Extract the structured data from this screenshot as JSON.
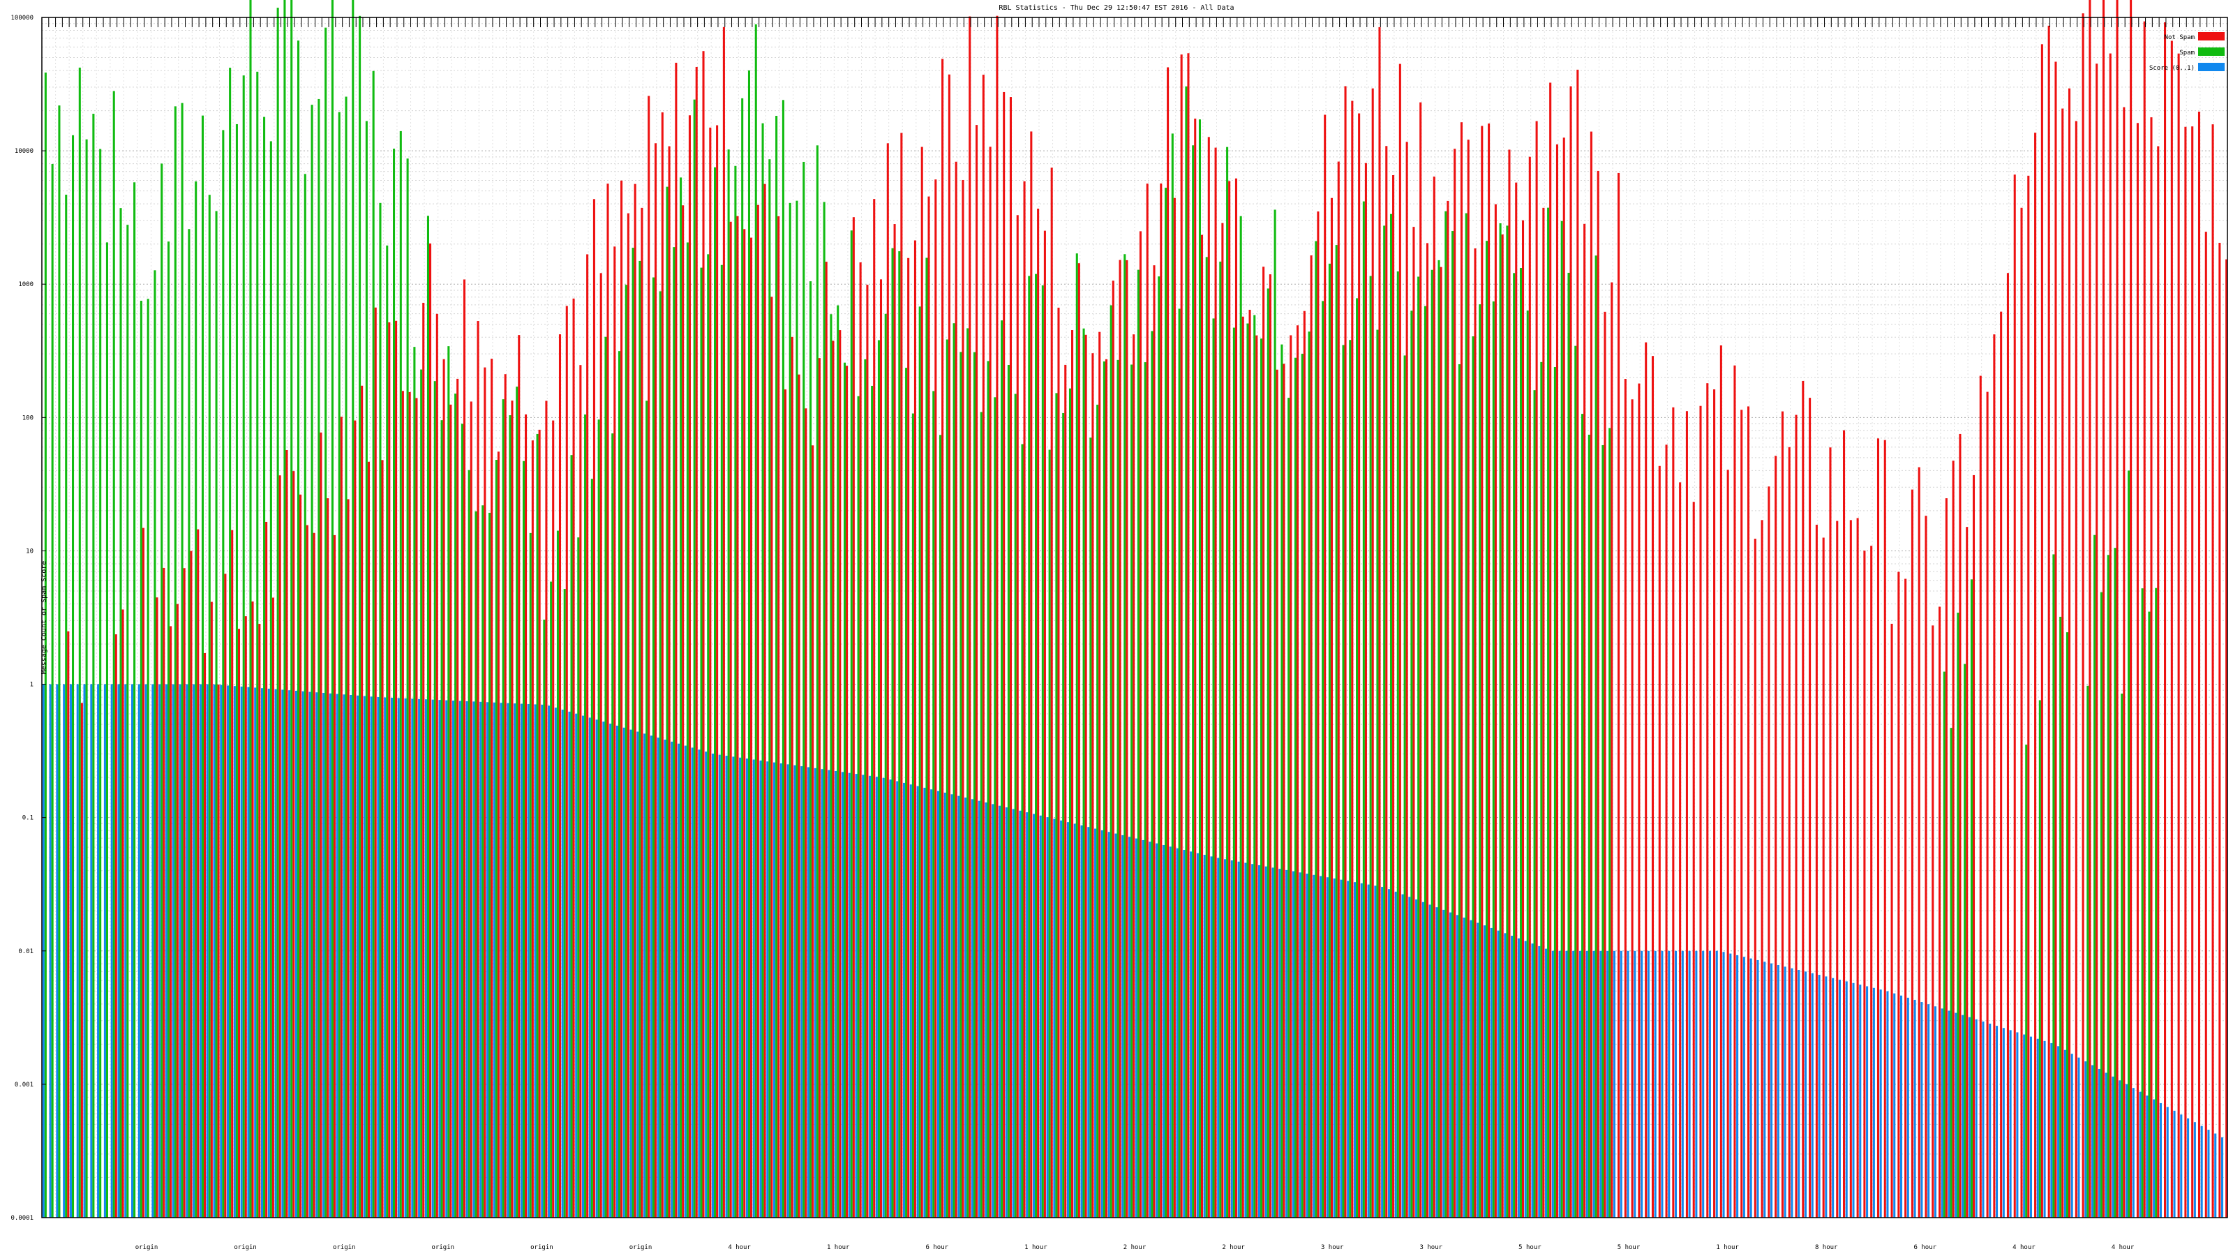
{
  "chart_data": {
    "type": "bar",
    "title": "RBL Statistics - Thu Dec 29 12:50:47 EST 2016 - All Data",
    "ylabel": "Message Count or Spam Score",
    "yscale": "log",
    "ylim": [
      0.0001,
      100000
    ],
    "yticks": [
      "0.0001",
      "0.001",
      "0.01",
      "0.1",
      "1",
      "10",
      "100",
      "1000",
      "10000",
      "100000"
    ],
    "grid": true,
    "legend_position": "top-right",
    "colors": {
      "Not Spam": "#ee1111",
      "Spam": "#11bb11",
      "Score": "#1188ee"
    },
    "legend": [
      {
        "key": "Not Spam",
        "label": "Not Spam"
      },
      {
        "key": "Spam",
        "label": "Spam"
      },
      {
        "key": "Score",
        "label": "Score (0..1)"
      }
    ],
    "x_tick_labels": [
      "origin",
      "origin",
      "origin",
      "origin",
      "origin",
      "origin",
      "4 hour",
      "1 hour",
      "6 hour",
      "1 hour",
      "2 hour",
      "2 hour",
      "3 hour",
      "3 hour",
      "5 hour",
      "5 hour",
      "1 hour",
      "8 hour",
      "6 hour",
      "4 hour",
      "4 hour"
    ],
    "series_samples": {
      "Not Spam": [
        1,
        18,
        3,
        60,
        700,
        200,
        2000,
        40000,
        200,
        5000,
        40000,
        300,
        20000,
        800,
        40000,
        3000,
        30000,
        150,
        60,
        30,
        6,
        60000,
        80000,
        5000
      ],
      "Spam": [
        40000,
        2000,
        50000,
        30000,
        200,
        8,
        2000,
        30000,
        400,
        200,
        300,
        5000,
        500,
        1500,
        1000,
        400,
        2,
        300,
        1,
        1,
        5,
        300
      ],
      "Score": [
        1,
        1,
        0.8,
        0.7,
        0.3,
        0.2,
        0.1,
        0.05,
        0.03,
        0.01,
        0.01,
        0.005,
        0.002,
        0.0004
      ]
    }
  }
}
